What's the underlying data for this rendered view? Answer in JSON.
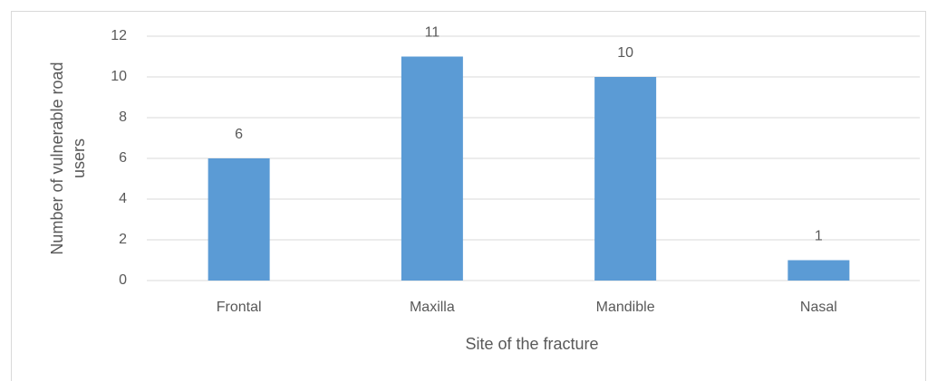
{
  "chart_data": {
    "type": "bar",
    "categories": [
      "Frontal",
      "Maxilla",
      "Mandible",
      "Nasal"
    ],
    "values": [
      6,
      11,
      10,
      1
    ],
    "color": "#5b9bd5",
    "x_label": "Site of the fracture",
    "y_label": "Number of vulnerable road users",
    "ylim": [
      0,
      12
    ],
    "yticks": [
      0,
      2,
      4,
      6,
      8,
      10,
      12
    ],
    "grid": true
  }
}
